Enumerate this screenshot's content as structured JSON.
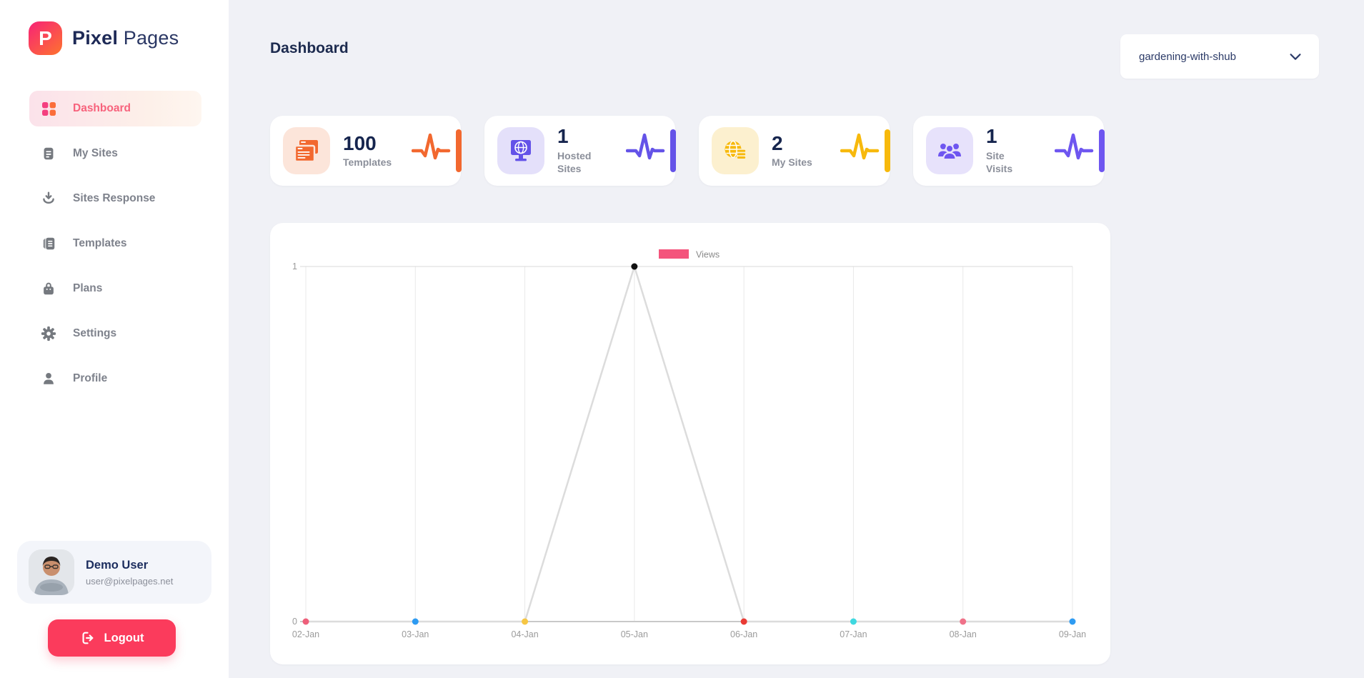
{
  "app": {
    "logo_letter": "P",
    "brand_bold": "Pixel",
    "brand_light": "Pages"
  },
  "sidebar": {
    "items": [
      {
        "label": "Dashboard",
        "icon": "grid-icon",
        "active": true
      },
      {
        "label": "My Sites",
        "icon": "document-icon",
        "active": false
      },
      {
        "label": "Sites Response",
        "icon": "download-icon",
        "active": false
      },
      {
        "label": "Templates",
        "icon": "templates-icon",
        "active": false
      },
      {
        "label": "Plans",
        "icon": "bag-icon",
        "active": false
      },
      {
        "label": "Settings",
        "icon": "gear-icon",
        "active": false
      },
      {
        "label": "Profile",
        "icon": "person-icon",
        "active": false
      }
    ],
    "user": {
      "name": "Demo User",
      "email": "user@pixelpages.net"
    },
    "logout_label": "Logout"
  },
  "header": {
    "title": "Dashboard",
    "site_selector": {
      "value": "gardening-with-shub"
    }
  },
  "stats": [
    {
      "value": "100",
      "label": "Templates",
      "accent": "#f2682f",
      "icon_bg": "#fce5da",
      "icon": "browser-windows-icon"
    },
    {
      "value": "1",
      "label": "Hosted Sites",
      "accent": "#6453e8",
      "icon_bg": "#e4e0fa",
      "icon": "hosted-globe-icon"
    },
    {
      "value": "2",
      "label": "My Sites",
      "accent": "#f7b90c",
      "icon_bg": "#fcf0cf",
      "icon": "globe-coins-icon"
    },
    {
      "value": "1",
      "label": "Site Visits",
      "accent": "#6e56f0",
      "icon_bg": "#e7e2fb",
      "icon": "users-group-icon"
    }
  ],
  "chart_data": {
    "type": "line",
    "title": "",
    "xlabel": "",
    "ylabel": "",
    "x": [
      "02-Jan",
      "03-Jan",
      "04-Jan",
      "05-Jan",
      "06-Jan",
      "07-Jan",
      "08-Jan",
      "09-Jan"
    ],
    "series": [
      {
        "name": "Views",
        "values": [
          0,
          0,
          0,
          1,
          0,
          0,
          0,
          0
        ]
      }
    ],
    "ylim": [
      0,
      1
    ],
    "yticks": [
      0,
      1
    ],
    "grid": "vertical-per-tick",
    "legend": {
      "label": "Views",
      "swatch_color": "#f4547c",
      "position": "top-center"
    },
    "line_color": "#dcdcdc",
    "point_colors": [
      "#ee5f7a",
      "#2e9bf2",
      "#f6c643",
      "#111111",
      "#e93a34",
      "#3fd8e0",
      "#ef7289",
      "#2e9bf2"
    ],
    "axis_text_color": "#9b9b9b"
  }
}
